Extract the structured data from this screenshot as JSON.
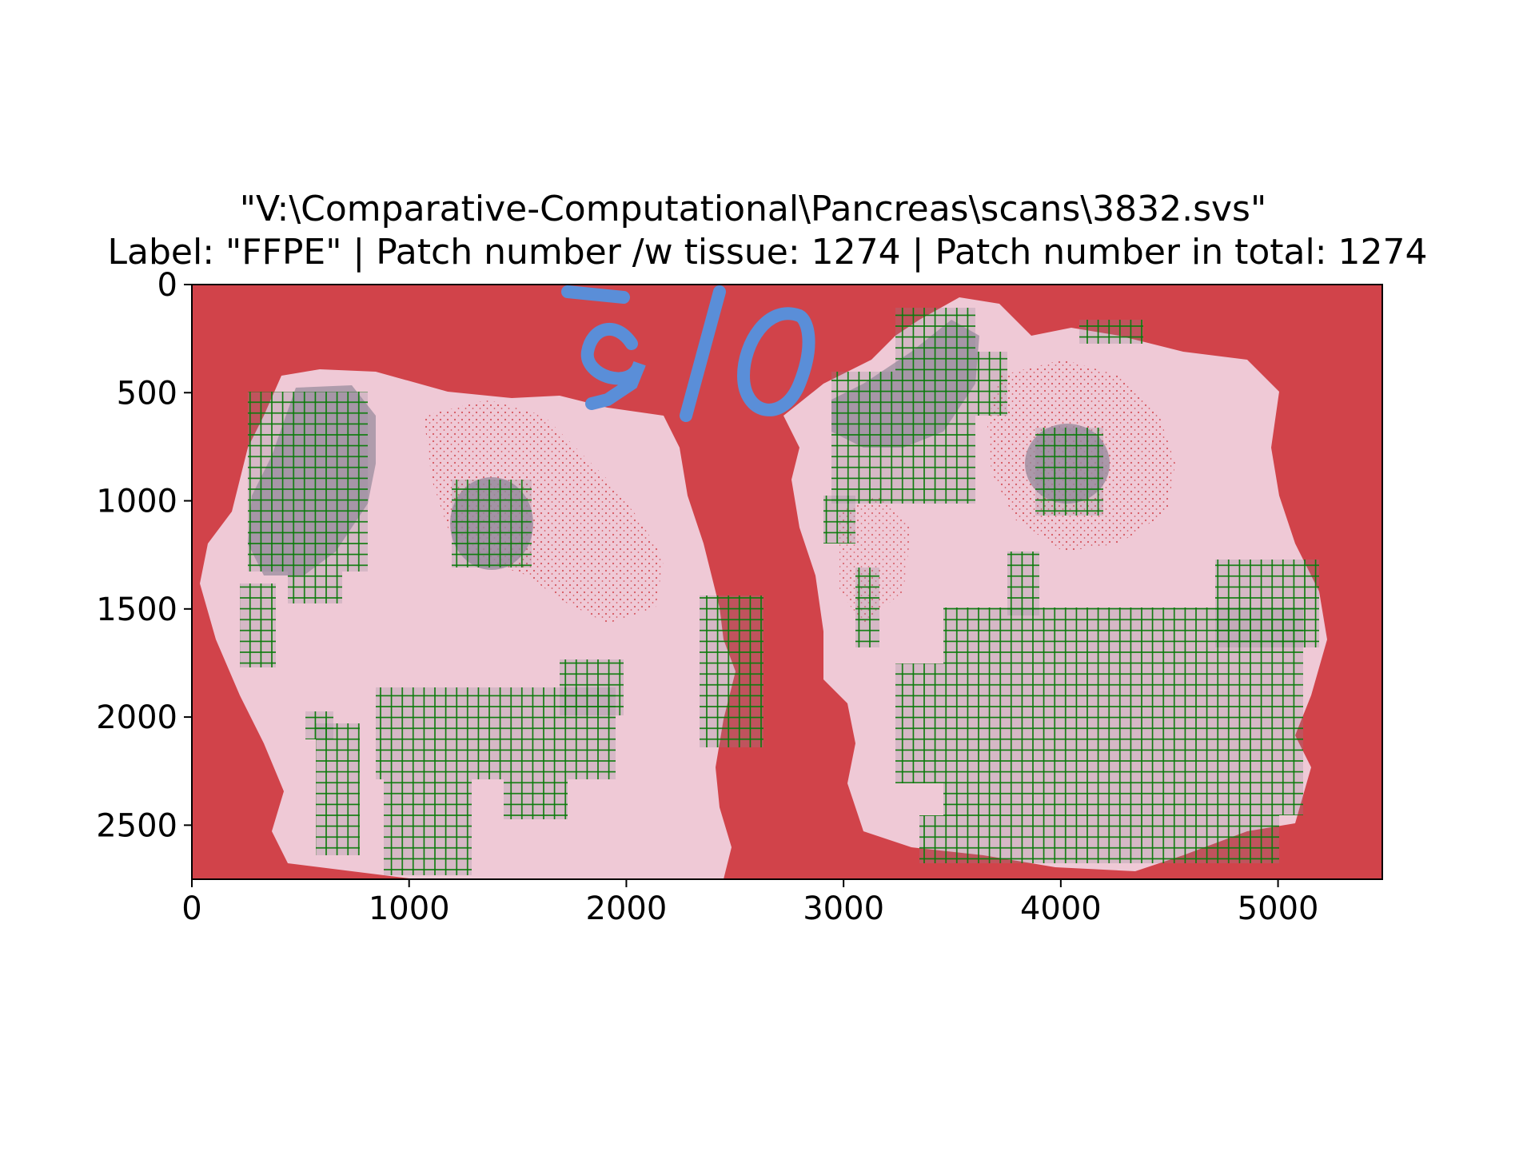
{
  "figure": {
    "title_line1": "\"V:\\Comparative-Computational\\Pancreas\\scans\\3832.svs\"",
    "title_line2": "Label: \"FFPE\" | Patch number /w tissue: 1274 | Patch number in total: 1274"
  },
  "axes": {
    "x_ticks": [
      "0",
      "1000",
      "2000",
      "3000",
      "4000",
      "5000"
    ],
    "x_tick_values": [
      0,
      1000,
      2000,
      3000,
      4000,
      5000
    ],
    "y_ticks": [
      "0",
      "500",
      "1000",
      "1500",
      "2000",
      "2500"
    ],
    "y_tick_values": [
      0,
      500,
      1000,
      1500,
      2000,
      2500
    ],
    "xlim": [
      0,
      5480
    ],
    "ylim": [
      2750,
      0
    ]
  },
  "image": {
    "description_colors": {
      "background_overlay": "#d1434a",
      "tissue": "#efc9d6",
      "tissue_dense": "#9a8c9e",
      "marker_ink": "#5a8ed8",
      "patch_grid": "#0a7a0a"
    }
  }
}
